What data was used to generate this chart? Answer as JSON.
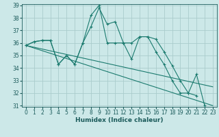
{
  "title": "",
  "xlabel": "Humidex (Indice chaleur)",
  "background_color": "#cce8e8",
  "grid_color": "#aacccc",
  "line_color": "#1a7a6e",
  "ylim": [
    31,
    39
  ],
  "yticks": [
    31,
    32,
    33,
    34,
    35,
    36,
    37,
    38,
    39
  ],
  "xlim": [
    -0.5,
    23.5
  ],
  "xticks": [
    0,
    1,
    2,
    3,
    4,
    5,
    6,
    7,
    8,
    9,
    10,
    11,
    12,
    13,
    14,
    15,
    16,
    17,
    18,
    19,
    20,
    21,
    22,
    23
  ],
  "y_main": [
    35.8,
    36.1,
    36.2,
    36.2,
    34.3,
    35.0,
    34.3,
    36.0,
    38.2,
    39.0,
    36.0,
    36.0,
    36.0,
    34.7,
    36.5,
    36.5,
    35.3,
    34.3,
    33.0,
    32.0,
    32.0,
    33.5,
    31.0,
    null
  ],
  "y_line2": [
    35.8,
    36.1,
    36.2,
    36.2,
    34.3,
    35.0,
    34.3,
    36.0,
    37.3,
    38.8,
    37.5,
    37.7,
    36.0,
    36.0,
    36.5,
    36.5,
    36.3,
    35.3,
    34.2,
    33.0,
    32.0,
    31.8,
    null,
    null
  ],
  "trend1_x": [
    0,
    23
  ],
  "trend1_y": [
    35.8,
    32.5
  ],
  "trend2_x": [
    0,
    23
  ],
  "trend2_y": [
    35.8,
    31.0
  ],
  "tick_fontsize": 5.5,
  "xlabel_fontsize": 6.5
}
